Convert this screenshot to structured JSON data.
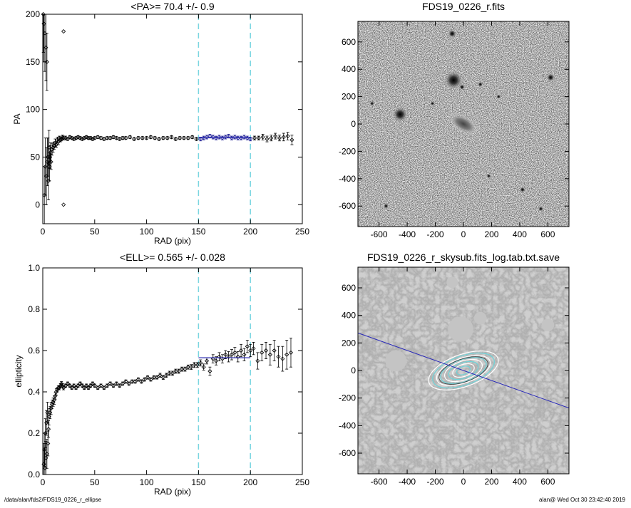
{
  "footer": {
    "path": "/data/alan/fds2/FDS19_0226_r_ellipse",
    "stamp": "alan@  Wed Oct 30 23:42:40 2019"
  },
  "chart_data": [
    {
      "id": "pa",
      "type": "scatter",
      "title": "<PA>=  70.4 +/-   0.9",
      "xlabel": "RAD (pix)",
      "ylabel": "PA",
      "xlim": [
        0,
        250
      ],
      "ylim": [
        -20,
        200
      ],
      "xticks": [
        0,
        50,
        100,
        150,
        200,
        250
      ],
      "yticks": [
        0,
        50,
        100,
        150,
        200
      ],
      "grid": false,
      "fit_window": [
        150,
        200
      ],
      "fit_mean": 70.4,
      "fit_err": 0.9,
      "series": [
        {
          "x": [
            0.5,
            1,
            1.5,
            2,
            2.5,
            3,
            3.5,
            4,
            4.5,
            5,
            5.5,
            6,
            6.5,
            7,
            7.5,
            8,
            9,
            10,
            11,
            12,
            13,
            14,
            15,
            16,
            17,
            18,
            19,
            20,
            22,
            24,
            26,
            28,
            30,
            32,
            34,
            36,
            38,
            40,
            42,
            44,
            46,
            48,
            50,
            53,
            56,
            59,
            62,
            65,
            68,
            71,
            74,
            77,
            80,
            84,
            88,
            92,
            96,
            100,
            104,
            108,
            112,
            116,
            120,
            124,
            128,
            132,
            136,
            140,
            144,
            148,
            152,
            155,
            158,
            161,
            164,
            167,
            170,
            173,
            176,
            179,
            182,
            185,
            188,
            191,
            194,
            197,
            200,
            204,
            208,
            212,
            216,
            220,
            224,
            228,
            232,
            236,
            240
          ],
          "y": [
            200,
            190,
            10,
            180,
            40,
            165,
            30,
            150,
            45,
            50,
            25,
            60,
            40,
            50,
            55,
            45,
            58,
            60,
            62,
            65,
            63,
            68,
            66,
            70,
            68,
            69,
            71,
            70,
            70,
            69,
            71,
            70,
            69,
            70,
            71,
            70,
            69,
            70,
            71,
            70,
            70,
            69,
            70,
            71,
            70,
            69,
            70,
            70,
            71,
            70,
            69,
            70,
            70,
            71,
            69,
            70,
            70,
            70,
            71,
            70,
            69,
            70,
            70,
            71,
            69,
            70,
            70,
            70,
            71,
            69,
            69,
            70,
            71,
            72,
            71,
            70,
            71,
            70,
            71,
            72,
            70,
            71,
            70,
            70,
            71,
            70,
            69,
            70,
            70,
            71,
            69,
            70,
            72,
            70,
            71,
            72,
            68
          ],
          "err": [
            40,
            40,
            30,
            40,
            30,
            35,
            30,
            30,
            25,
            20,
            20,
            18,
            15,
            12,
            10,
            8,
            6,
            5,
            4,
            4,
            3,
            3,
            3,
            2,
            2,
            2,
            2,
            2,
            2,
            1.5,
            1.5,
            1.5,
            1.5,
            1.5,
            1.5,
            1.5,
            1.5,
            1.5,
            1.5,
            1.5,
            1.5,
            1.5,
            1.5,
            1.5,
            1.5,
            1.5,
            1.5,
            1.5,
            1.5,
            1.5,
            1.5,
            1.5,
            1.5,
            1.5,
            1.5,
            1.5,
            1.5,
            1.5,
            1.5,
            1.5,
            1.5,
            1.5,
            1.5,
            1.5,
            1.5,
            1.5,
            1.5,
            1.5,
            1.5,
            1.5,
            2,
            2,
            2,
            2,
            2,
            2,
            2,
            2,
            2,
            2,
            2,
            2,
            2,
            2,
            2,
            2,
            2,
            2,
            2,
            3,
            3,
            3,
            3,
            3,
            4,
            4,
            5
          ]
        }
      ],
      "outliers": [
        {
          "x": 20,
          "y": 182
        },
        {
          "x": 20,
          "y": 0
        }
      ]
    },
    {
      "id": "ell",
      "type": "scatter",
      "title": "<ELL>= 0.565 +/-  0.028",
      "xlabel": "RAD (pix)",
      "ylabel": "ellipticity",
      "xlim": [
        0,
        250
      ],
      "ylim": [
        0,
        1
      ],
      "xticks": [
        0,
        50,
        100,
        150,
        200,
        250
      ],
      "yticks": [
        0.0,
        0.2,
        0.4,
        0.6,
        0.8,
        1.0
      ],
      "grid": false,
      "fit_window": [
        150,
        200
      ],
      "fit_mean": 0.565,
      "fit_err": 0.028,
      "series": [
        {
          "x": [
            1,
            1.5,
            2,
            2.5,
            3,
            3.5,
            4,
            4.5,
            5,
            5.5,
            6,
            7,
            8,
            9,
            10,
            11,
            12,
            13,
            14,
            15,
            16,
            17,
            18,
            19,
            20,
            22,
            24,
            26,
            28,
            30,
            32,
            34,
            36,
            38,
            40,
            42,
            44,
            46,
            48,
            50,
            53,
            56,
            59,
            62,
            65,
            68,
            71,
            74,
            77,
            80,
            83,
            86,
            89,
            92,
            95,
            98,
            101,
            104,
            107,
            110,
            113,
            116,
            119,
            122,
            125,
            128,
            131,
            134,
            137,
            140,
            143,
            146,
            149,
            152,
            155,
            158,
            161,
            164,
            167,
            170,
            173,
            176,
            179,
            182,
            185,
            188,
            191,
            194,
            197,
            200,
            203,
            207,
            211,
            215,
            219,
            223,
            227,
            231,
            235,
            239
          ],
          "y": [
            0.05,
            0.12,
            0.03,
            0.2,
            0.08,
            0.25,
            0.1,
            0.3,
            0.15,
            0.22,
            0.28,
            0.3,
            0.32,
            0.34,
            0.35,
            0.36,
            0.38,
            0.4,
            0.41,
            0.42,
            0.42,
            0.43,
            0.44,
            0.43,
            0.42,
            0.43,
            0.44,
            0.43,
            0.42,
            0.43,
            0.42,
            0.43,
            0.44,
            0.43,
            0.42,
            0.43,
            0.42,
            0.43,
            0.44,
            0.43,
            0.42,
            0.43,
            0.42,
            0.43,
            0.44,
            0.43,
            0.44,
            0.43,
            0.44,
            0.45,
            0.44,
            0.45,
            0.45,
            0.46,
            0.45,
            0.46,
            0.47,
            0.46,
            0.47,
            0.47,
            0.48,
            0.47,
            0.48,
            0.49,
            0.49,
            0.5,
            0.5,
            0.51,
            0.51,
            0.52,
            0.52,
            0.53,
            0.53,
            0.54,
            0.52,
            0.55,
            0.5,
            0.56,
            0.55,
            0.57,
            0.56,
            0.58,
            0.57,
            0.58,
            0.59,
            0.57,
            0.6,
            0.58,
            0.62,
            0.6,
            0.61,
            0.55,
            0.59,
            0.6,
            0.58,
            0.6,
            0.57,
            0.56,
            0.58,
            0.59
          ],
          "err": [
            0.1,
            0.08,
            0.1,
            0.07,
            0.08,
            0.06,
            0.07,
            0.05,
            0.06,
            0.04,
            0.04,
            0.03,
            0.03,
            0.02,
            0.02,
            0.02,
            0.015,
            0.015,
            0.01,
            0.01,
            0.01,
            0.01,
            0.01,
            0.01,
            0.01,
            0.008,
            0.008,
            0.008,
            0.008,
            0.008,
            0.008,
            0.008,
            0.008,
            0.008,
            0.008,
            0.008,
            0.008,
            0.008,
            0.008,
            0.008,
            0.008,
            0.008,
            0.008,
            0.008,
            0.008,
            0.008,
            0.008,
            0.008,
            0.008,
            0.008,
            0.008,
            0.008,
            0.008,
            0.008,
            0.008,
            0.008,
            0.008,
            0.008,
            0.008,
            0.008,
            0.01,
            0.01,
            0.01,
            0.01,
            0.01,
            0.01,
            0.01,
            0.01,
            0.01,
            0.01,
            0.012,
            0.012,
            0.012,
            0.015,
            0.015,
            0.015,
            0.02,
            0.02,
            0.02,
            0.02,
            0.02,
            0.02,
            0.025,
            0.025,
            0.025,
            0.025,
            0.03,
            0.03,
            0.03,
            0.03,
            0.03,
            0.04,
            0.04,
            0.04,
            0.05,
            0.05,
            0.05,
            0.06,
            0.07,
            0.07
          ]
        }
      ]
    },
    {
      "id": "img",
      "type": "heatmap",
      "title": "FDS19_0226_r.fits",
      "xlim": [
        -750,
        750
      ],
      "ylim": [
        -750,
        750
      ],
      "xticks": [
        -600,
        -400,
        -200,
        0,
        200,
        400,
        600
      ],
      "yticks": [
        -600,
        -400,
        -200,
        0,
        200,
        400,
        600
      ],
      "galaxy": {
        "x": 0,
        "y": 0,
        "pa": 30
      },
      "sources": [
        {
          "x": -450,
          "y": 70,
          "r": 26
        },
        {
          "x": -70,
          "y": 320,
          "r": 32
        },
        {
          "x": -80,
          "y": 660,
          "r": 14
        },
        {
          "x": 620,
          "y": 340,
          "r": 14
        },
        {
          "x": -10,
          "y": 270,
          "r": 10
        },
        {
          "x": 120,
          "y": 290,
          "r": 9
        },
        {
          "x": -220,
          "y": 150,
          "r": 8
        },
        {
          "x": 420,
          "y": -480,
          "r": 10
        },
        {
          "x": -550,
          "y": -600,
          "r": 9
        },
        {
          "x": 250,
          "y": 200,
          "r": 8
        },
        {
          "x": 180,
          "y": -380,
          "r": 8
        },
        {
          "x": 550,
          "y": -620,
          "r": 9
        },
        {
          "x": -650,
          "y": 150,
          "r": 8
        }
      ]
    },
    {
      "id": "contour",
      "type": "heatmap",
      "title": "FDS19_0226_r_skysub.fits_log.tab.txt.save",
      "xlim": [
        -750,
        750
      ],
      "ylim": [
        -750,
        750
      ],
      "xticks": [
        -600,
        -400,
        -200,
        0,
        200,
        400,
        600
      ],
      "yticks": [
        -600,
        -400,
        -200,
        0,
        200,
        400,
        600
      ],
      "major_axis_pa": 70.4,
      "masks": [
        {
          "x": -20,
          "y": 300,
          "r": 90
        },
        {
          "x": -480,
          "y": 70,
          "r": 75
        },
        {
          "x": 120,
          "y": 380,
          "r": 45
        },
        {
          "x": 600,
          "y": 330,
          "r": 45
        },
        {
          "x": -80,
          "y": 640,
          "r": 40
        }
      ],
      "isophotes": [
        {
          "a": 260,
          "ell": 0.56
        },
        {
          "a": 230,
          "ell": 0.55
        },
        {
          "a": 200,
          "ell": 0.56
        },
        {
          "a": 170,
          "ell": 0.54
        },
        {
          "a": 140,
          "ell": 0.52
        },
        {
          "a": 110,
          "ell": 0.5
        },
        {
          "a": 80,
          "ell": 0.47
        },
        {
          "a": 50,
          "ell": 0.44
        }
      ]
    }
  ]
}
